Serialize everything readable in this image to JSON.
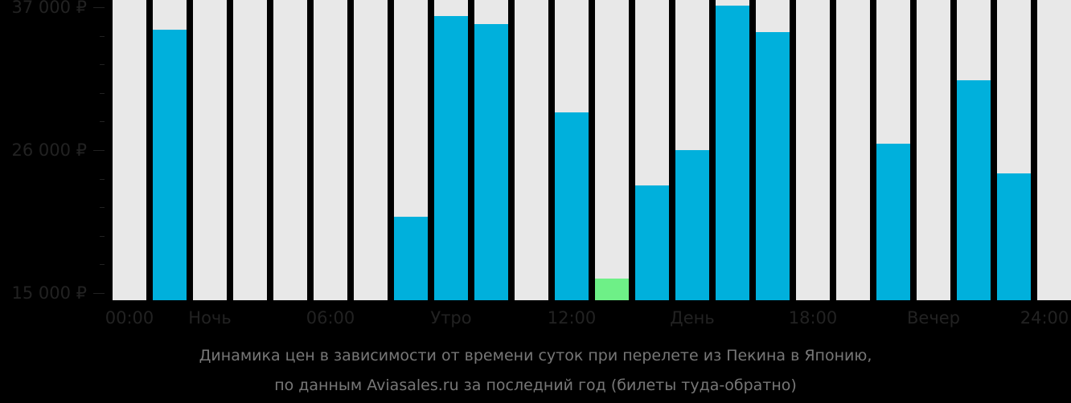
{
  "chart_data": {
    "type": "bar",
    "title": "Динамика цен в зависимости от времени суток при перелете из Пекина в Японию, по данным Aviasales.ru за последний год (билеты туда-обратно)",
    "xlabel": "",
    "ylabel": "",
    "ylim": [
      14500,
      37100
    ],
    "y_ticks": [
      "37 000 ₽",
      "26 000 ₽",
      "15 000 ₽"
    ],
    "x_tick_labels": [
      "00:00",
      "Ночь",
      "06:00",
      "Утро",
      "12:00",
      "День",
      "18:00",
      "Вечер",
      "24:00"
    ],
    "categories": [
      "00:00",
      "01:00",
      "02:00",
      "03:00",
      "04:00",
      "05:00",
      "06:00",
      "07:00",
      "08:00",
      "09:00",
      "10:00",
      "11:00",
      "12:00",
      "13:00",
      "14:00",
      "15:00",
      "16:00",
      "17:00",
      "18:00",
      "19:00",
      "20:00",
      "21:00",
      "22:00"
    ],
    "values": [
      null,
      35300,
      null,
      null,
      null,
      null,
      null,
      20900,
      36300,
      35700,
      null,
      28900,
      16100,
      23300,
      26000,
      37100,
      35100,
      null,
      null,
      26500,
      null,
      31400,
      24200
    ],
    "highlight": {
      "index": 12,
      "label": "cheapest",
      "color": "#6ef087"
    },
    "grid": false,
    "legend": null
  },
  "colors": {
    "bar": "#00b0dc",
    "cheapest": "#6ef087",
    "slot_bg": "#e8e8e8",
    "background": "#000000",
    "axis_text": "#222222",
    "caption_text": "#777777"
  },
  "caption": {
    "line1": "Динамика цен в зависимости от времени суток при перелете из Пекина в Японию,",
    "line2": "по данным Aviasales.ru за последний год (билеты туда-обратно)"
  }
}
